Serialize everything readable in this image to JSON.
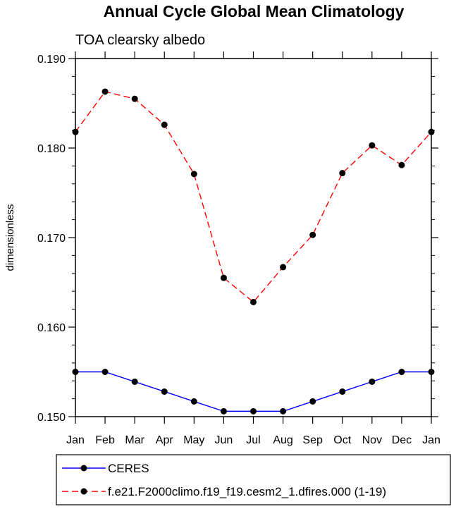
{
  "chart_data": {
    "type": "line",
    "title": "Annual Cycle Global Mean Climatology",
    "subtitle": "TOA clearsky albedo",
    "xlabel": "",
    "ylabel": "dimensionless",
    "categories": [
      "Jan",
      "Feb",
      "Mar",
      "Apr",
      "May",
      "Jun",
      "Jul",
      "Aug",
      "Sep",
      "Oct",
      "Nov",
      "Dec",
      "Jan"
    ],
    "ylim": [
      0.15,
      0.19
    ],
    "yticks": [
      0.15,
      0.16,
      0.17,
      0.18,
      0.19
    ],
    "ytick_labels": [
      "0.150",
      "0.160",
      "0.170",
      "0.180",
      "0.190"
    ],
    "series": [
      {
        "name": "CERES",
        "color": "#0000ff",
        "dash": "solid",
        "marker": "filled-circle",
        "values": [
          0.155,
          0.155,
          0.1539,
          0.1528,
          0.1517,
          0.1506,
          0.1506,
          0.1506,
          0.1517,
          0.1528,
          0.1539,
          0.155,
          0.155
        ]
      },
      {
        "name": "f.e21.F2000climo.f19_f19.cesm2_1.dfires.000 (1-19)",
        "color": "#ff0000",
        "dash": "dashed",
        "marker": "filled-circle",
        "values": [
          0.1818,
          0.1863,
          0.1855,
          0.1826,
          0.1771,
          0.1655,
          0.1628,
          0.1667,
          0.1703,
          0.1772,
          0.1803,
          0.1781,
          0.1818
        ]
      }
    ],
    "grid": false,
    "legend_position": "bottom"
  }
}
